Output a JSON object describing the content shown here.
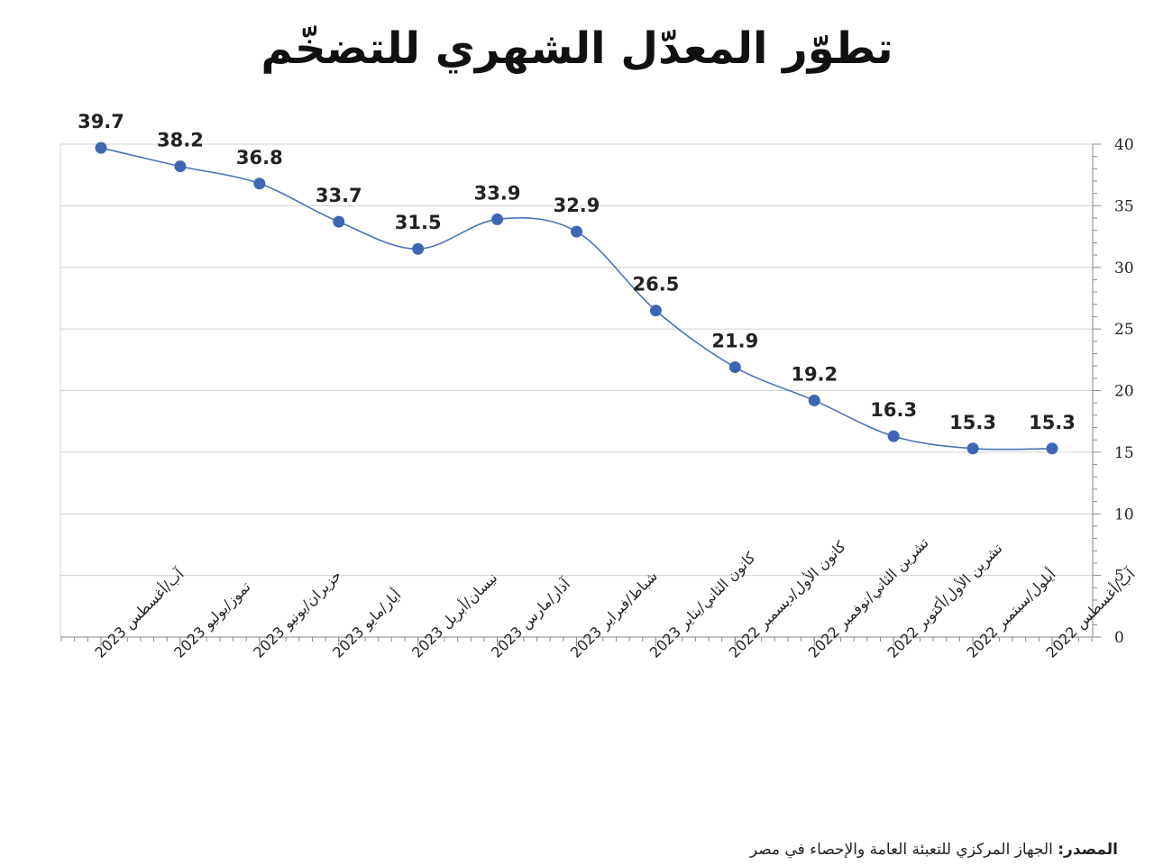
{
  "title": "تطوّر المعدّل الشهري للتضخّم",
  "source": {
    "label": "المصدر:",
    "text": "الجهاز المركزي للتعبئة العامة والإحصاء في مصر"
  },
  "chart_data": {
    "type": "line",
    "title": "تطوّر المعدّل الشهري للتضخّم",
    "categories": [
      "آب/أغسطس 2023",
      "تموز/يوليو 2023",
      "حزيران/يونيو 2023",
      "أيار/مايو 2023",
      "نيسان/أبريل 2023",
      "آذار/مارس 2023",
      "شباط/فبراير 2023",
      "كانون الثاني/يناير 2023",
      "كانون الأول/ديسمبر 2022",
      "تشرين الثاني/نوفمبر 2022",
      "تشرين الأول/أكتوبر 2022",
      "أيلول/سبتمبر 2022",
      "آب/أغسطس 2022"
    ],
    "values": [
      39.7,
      38.2,
      36.8,
      33.7,
      31.5,
      33.9,
      32.9,
      26.5,
      21.9,
      19.2,
      16.3,
      15.3,
      15.3
    ],
    "data_labels": [
      "39.7",
      "38.2",
      "36.8",
      "33.7",
      "31.5",
      "33.9",
      "32.9",
      "26.5",
      "21.9",
      "19.2",
      "16.3",
      "15.3",
      "15.3"
    ],
    "ylim": [
      0,
      40
    ],
    "yticks": [
      0,
      5,
      10,
      15,
      20,
      25,
      30,
      35,
      40
    ],
    "ytick_labels": [
      "0",
      "5",
      "10",
      "15",
      "20",
      "25",
      "30",
      "35",
      "40"
    ],
    "y_axis_position": "right",
    "grid": true,
    "legend": "none",
    "colors": {
      "line": "#4a72b8",
      "marker": "#3d67b3",
      "grid": "#d0d0d0",
      "axis": "#888888",
      "label": "#222222"
    }
  }
}
